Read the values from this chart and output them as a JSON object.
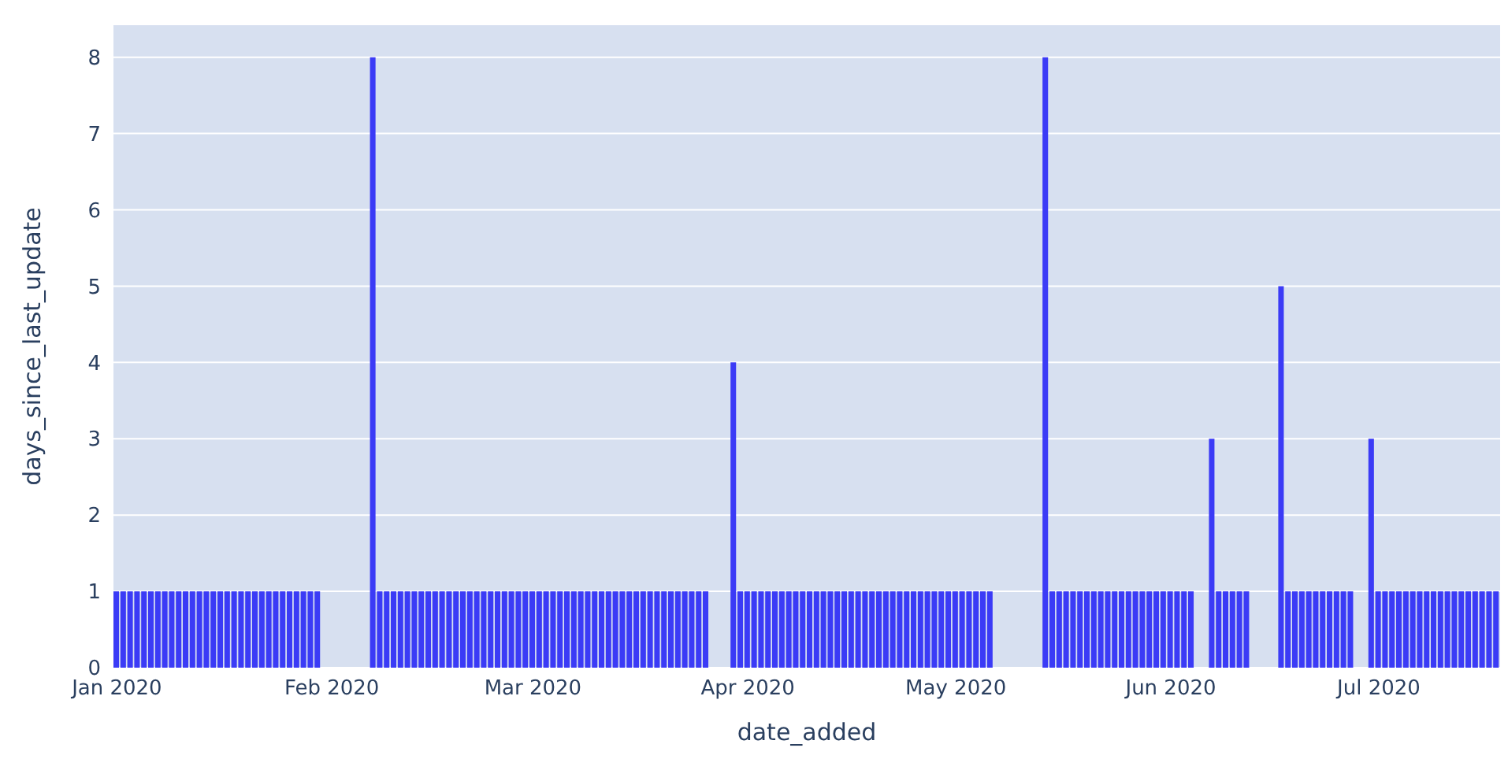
{
  "chart_data": {
    "type": "bar",
    "xlabel": "date_added",
    "ylabel": "days_since_last_update",
    "x": [
      "2020-01-01",
      "2020-01-02",
      "2020-01-03",
      "2020-01-04",
      "2020-01-05",
      "2020-01-06",
      "2020-01-07",
      "2020-01-08",
      "2020-01-09",
      "2020-01-10",
      "2020-01-11",
      "2020-01-12",
      "2020-01-13",
      "2020-01-14",
      "2020-01-15",
      "2020-01-16",
      "2020-01-17",
      "2020-01-18",
      "2020-01-19",
      "2020-01-20",
      "2020-01-21",
      "2020-01-22",
      "2020-01-23",
      "2020-01-24",
      "2020-01-25",
      "2020-01-26",
      "2020-01-27",
      "2020-01-28",
      "2020-01-29",
      "2020-01-30",
      "2020-02-07",
      "2020-02-08",
      "2020-02-09",
      "2020-02-10",
      "2020-02-11",
      "2020-02-12",
      "2020-02-13",
      "2020-02-14",
      "2020-02-15",
      "2020-02-16",
      "2020-02-17",
      "2020-02-18",
      "2020-02-19",
      "2020-02-20",
      "2020-02-21",
      "2020-02-22",
      "2020-02-23",
      "2020-02-24",
      "2020-02-25",
      "2020-02-26",
      "2020-02-27",
      "2020-02-28",
      "2020-02-29",
      "2020-03-01",
      "2020-03-02",
      "2020-03-03",
      "2020-03-04",
      "2020-03-05",
      "2020-03-06",
      "2020-03-07",
      "2020-03-08",
      "2020-03-09",
      "2020-03-10",
      "2020-03-11",
      "2020-03-12",
      "2020-03-13",
      "2020-03-14",
      "2020-03-15",
      "2020-03-16",
      "2020-03-17",
      "2020-03-18",
      "2020-03-19",
      "2020-03-20",
      "2020-03-21",
      "2020-03-22",
      "2020-03-23",
      "2020-03-24",
      "2020-03-25",
      "2020-03-26",
      "2020-03-30",
      "2020-03-31",
      "2020-04-01",
      "2020-04-02",
      "2020-04-03",
      "2020-04-04",
      "2020-04-05",
      "2020-04-06",
      "2020-04-07",
      "2020-04-08",
      "2020-04-09",
      "2020-04-10",
      "2020-04-11",
      "2020-04-12",
      "2020-04-13",
      "2020-04-14",
      "2020-04-15",
      "2020-04-16",
      "2020-04-17",
      "2020-04-18",
      "2020-04-19",
      "2020-04-20",
      "2020-04-21",
      "2020-04-22",
      "2020-04-23",
      "2020-04-24",
      "2020-04-25",
      "2020-04-26",
      "2020-04-27",
      "2020-04-28",
      "2020-04-29",
      "2020-04-30",
      "2020-05-01",
      "2020-05-02",
      "2020-05-03",
      "2020-05-04",
      "2020-05-05",
      "2020-05-06",
      "2020-05-14",
      "2020-05-15",
      "2020-05-16",
      "2020-05-17",
      "2020-05-18",
      "2020-05-19",
      "2020-05-20",
      "2020-05-21",
      "2020-05-22",
      "2020-05-23",
      "2020-05-24",
      "2020-05-25",
      "2020-05-26",
      "2020-05-27",
      "2020-05-28",
      "2020-05-29",
      "2020-05-30",
      "2020-05-31",
      "2020-06-01",
      "2020-06-02",
      "2020-06-03",
      "2020-06-04",
      "2020-06-07",
      "2020-06-08",
      "2020-06-09",
      "2020-06-10",
      "2020-06-11",
      "2020-06-12",
      "2020-06-17",
      "2020-06-18",
      "2020-06-19",
      "2020-06-20",
      "2020-06-21",
      "2020-06-22",
      "2020-06-23",
      "2020-06-24",
      "2020-06-25",
      "2020-06-26",
      "2020-06-27",
      "2020-06-30",
      "2020-07-01",
      "2020-07-02",
      "2020-07-03",
      "2020-07-04",
      "2020-07-05",
      "2020-07-06",
      "2020-07-07",
      "2020-07-08",
      "2020-07-09",
      "2020-07-10",
      "2020-07-11",
      "2020-07-12",
      "2020-07-13",
      "2020-07-14",
      "2020-07-15",
      "2020-07-16",
      "2020-07-17",
      "2020-07-18"
    ],
    "values": [
      1,
      1,
      1,
      1,
      1,
      1,
      1,
      1,
      1,
      1,
      1,
      1,
      1,
      1,
      1,
      1,
      1,
      1,
      1,
      1,
      1,
      1,
      1,
      1,
      1,
      1,
      1,
      1,
      1,
      1,
      8,
      1,
      1,
      1,
      1,
      1,
      1,
      1,
      1,
      1,
      1,
      1,
      1,
      1,
      1,
      1,
      1,
      1,
      1,
      1,
      1,
      1,
      1,
      1,
      1,
      1,
      1,
      1,
      1,
      1,
      1,
      1,
      1,
      1,
      1,
      1,
      1,
      1,
      1,
      1,
      1,
      1,
      1,
      1,
      1,
      1,
      1,
      1,
      1,
      4,
      1,
      1,
      1,
      1,
      1,
      1,
      1,
      1,
      1,
      1,
      1,
      1,
      1,
      1,
      1,
      1,
      1,
      1,
      1,
      1,
      1,
      1,
      1,
      1,
      1,
      1,
      1,
      1,
      1,
      1,
      1,
      1,
      1,
      1,
      1,
      1,
      1,
      8,
      1,
      1,
      1,
      1,
      1,
      1,
      1,
      1,
      1,
      1,
      1,
      1,
      1,
      1,
      1,
      1,
      1,
      1,
      1,
      1,
      1,
      3,
      1,
      1,
      1,
      1,
      1,
      5,
      1,
      1,
      1,
      1,
      1,
      1,
      1,
      1,
      1,
      1,
      3,
      1,
      1,
      1,
      1,
      1,
      1,
      1,
      1,
      1,
      1,
      1,
      1,
      1,
      1,
      1,
      1,
      1,
      1
    ],
    "color": "#3b3bf6",
    "xlim": [
      "2019-12-31T12:00",
      "2020-07-18T12:00"
    ],
    "xticks": [
      {
        "value": "2020-01",
        "label": "Jan 2020"
      },
      {
        "value": "2020-02",
        "label": "Feb 2020"
      },
      {
        "value": "2020-03",
        "label": "Mar 2020"
      },
      {
        "value": "2020-04",
        "label": "Apr 2020"
      },
      {
        "value": "2020-05",
        "label": "May 2020"
      },
      {
        "value": "2020-06",
        "label": "Jun 2020"
      },
      {
        "value": "2020-07",
        "label": "Jul 2020"
      }
    ],
    "ylim": [
      0,
      8.42
    ],
    "yticks": [
      0,
      1,
      2,
      3,
      4,
      5,
      6,
      7,
      8
    ],
    "grid": "y"
  }
}
